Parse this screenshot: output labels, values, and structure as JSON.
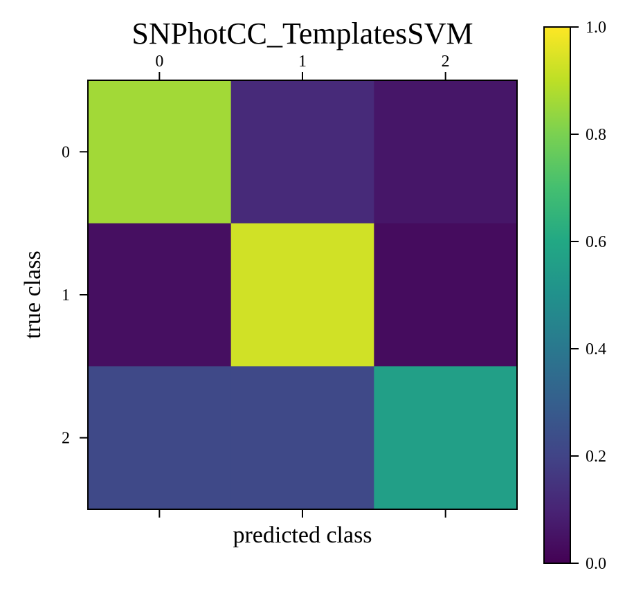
{
  "chart_data": {
    "type": "heatmap",
    "title": "SNPhotCC_TemplatesSVM",
    "xlabel": "predicted class",
    "ylabel": "true class",
    "x_categories": [
      "0",
      "1",
      "2"
    ],
    "y_categories": [
      "0",
      "1",
      "2"
    ],
    "values": [
      [
        0.86,
        0.12,
        0.06
      ],
      [
        0.04,
        0.93,
        0.03
      ],
      [
        0.22,
        0.22,
        0.56
      ]
    ],
    "colormap": "viridis",
    "colorbar": {
      "range": [
        0.0,
        1.0
      ],
      "ticks": [
        "0.0",
        "0.2",
        "0.4",
        "0.6",
        "0.8",
        "1.0"
      ]
    },
    "x_tick_position": "top",
    "grid": false
  }
}
